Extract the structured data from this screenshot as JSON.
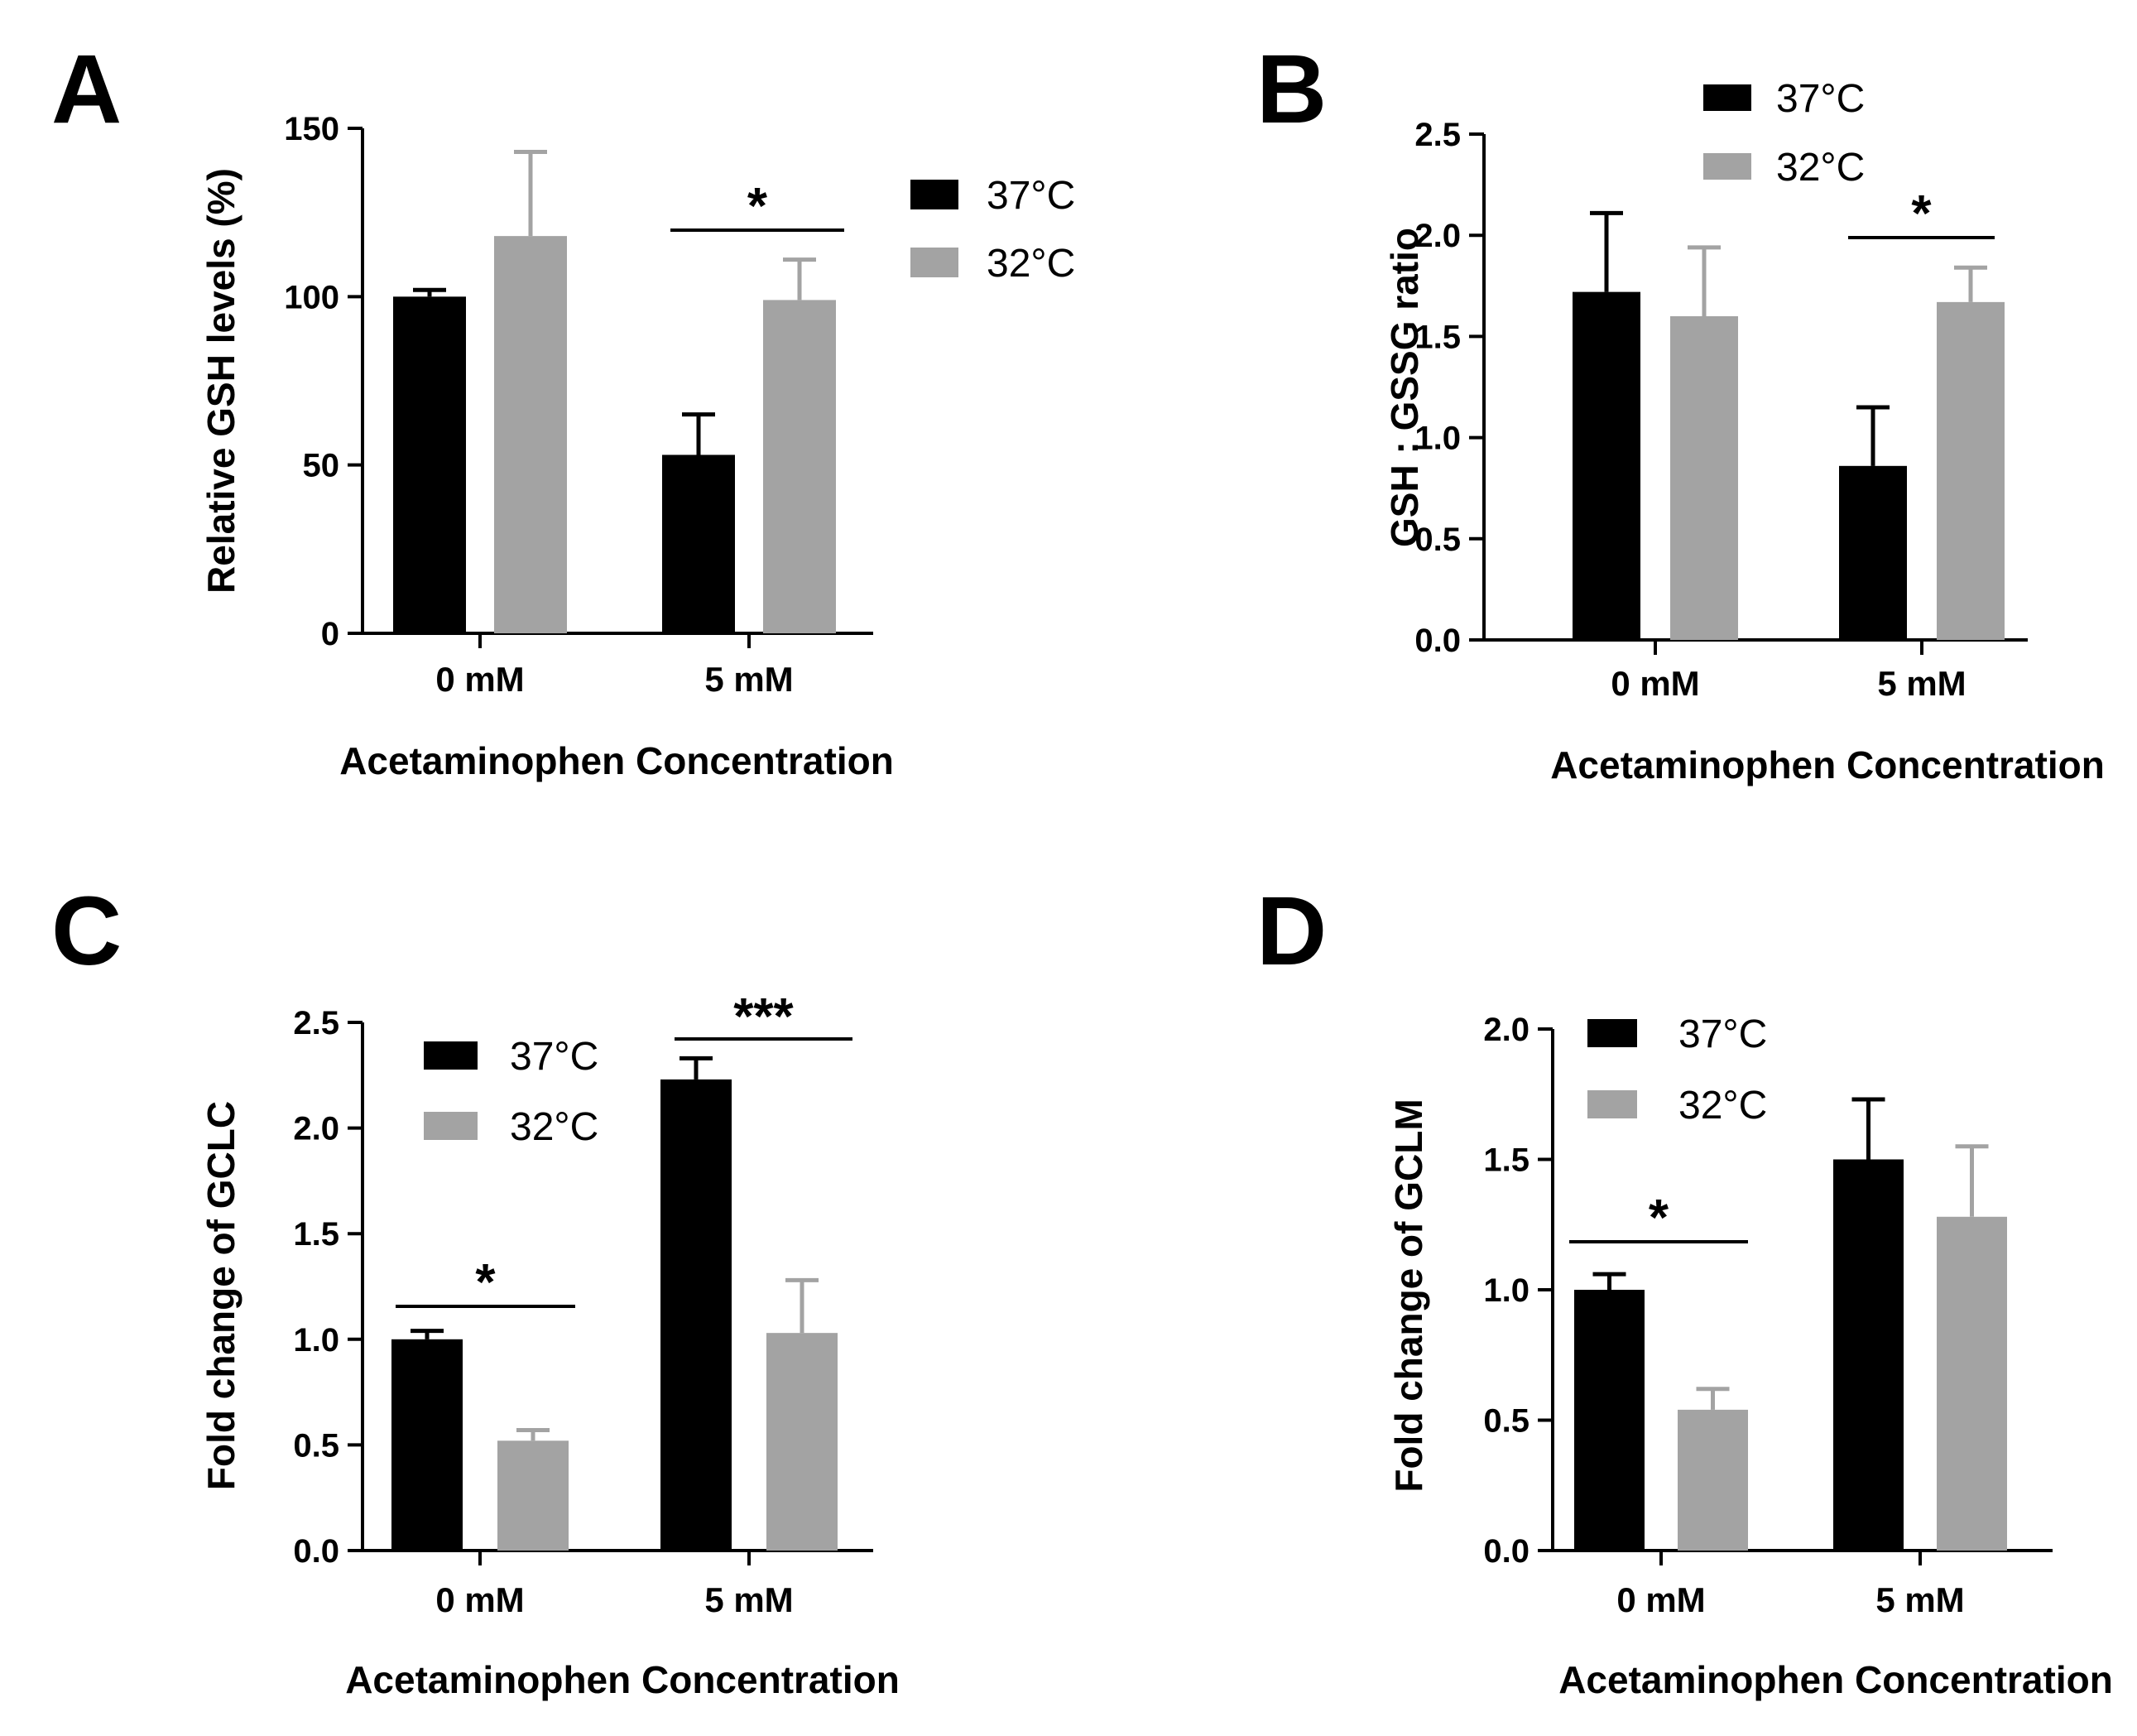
{
  "figure": {
    "panels": [
      "A",
      "B",
      "C",
      "D"
    ]
  },
  "colors": {
    "series_37": "#000000",
    "series_32": "#a3a3a3",
    "axis": "#000000"
  },
  "chart_data": [
    {
      "panel": "A",
      "type": "bar",
      "title": "",
      "xlabel": "Acetaminophen Concentration",
      "ylabel": "Relative GSH levels (%)",
      "categories": [
        "0 mM",
        "5 mM"
      ],
      "ylim": [
        0,
        150
      ],
      "yticks": [
        0,
        50,
        100,
        150
      ],
      "ytick_labels": [
        "0",
        "50",
        "100",
        "150"
      ],
      "legend": [
        "37°C",
        "32°C"
      ],
      "legend_position": "top-right",
      "series": [
        {
          "name": "37°C",
          "values": [
            100,
            53
          ],
          "errors": [
            2,
            12
          ]
        },
        {
          "name": "32°C",
          "values": [
            118,
            99
          ],
          "errors": [
            25,
            12
          ]
        }
      ],
      "significance": [
        {
          "category": "5 mM",
          "label": "*"
        }
      ]
    },
    {
      "panel": "B",
      "type": "bar",
      "title": "",
      "xlabel": "Acetaminophen Concentration",
      "ylabel": "GSH : GSSG ratio",
      "categories": [
        "0 mM",
        "5 mM"
      ],
      "ylim": [
        0,
        2.5
      ],
      "yticks": [
        0,
        0.5,
        1,
        1.5,
        2,
        2.5
      ],
      "ytick_labels": [
        "0.0",
        "0.5",
        "1.0",
        "1.5",
        "2.0",
        "2.5"
      ],
      "legend": [
        "37°C",
        "32°C"
      ],
      "legend_position": "top",
      "series": [
        {
          "name": "37°C",
          "values": [
            1.72,
            0.86
          ],
          "errors": [
            0.39,
            0.29
          ]
        },
        {
          "name": "32°C",
          "values": [
            1.6,
            1.67
          ],
          "errors": [
            0.34,
            0.17
          ]
        }
      ],
      "significance": [
        {
          "category": "5 mM",
          "label": "*"
        }
      ]
    },
    {
      "panel": "C",
      "type": "bar",
      "title": "",
      "xlabel": "Acetaminophen Concentration",
      "ylabel": "Fold change of GCLC",
      "categories": [
        "0 mM",
        "5 mM"
      ],
      "ylim": [
        0,
        2.5
      ],
      "yticks": [
        0,
        0.5,
        1,
        1.5,
        2,
        2.5
      ],
      "ytick_labels": [
        "0.0",
        "0.5",
        "1.0",
        "1.5",
        "2.0",
        "2.5"
      ],
      "legend": [
        "37°C",
        "32°C"
      ],
      "legend_position": "top-left",
      "series": [
        {
          "name": "37°C",
          "values": [
            1.0,
            2.23
          ],
          "errors": [
            0.04,
            0.1
          ]
        },
        {
          "name": "32°C",
          "values": [
            0.52,
            1.03
          ],
          "errors": [
            0.05,
            0.25
          ]
        }
      ],
      "significance": [
        {
          "category": "0 mM",
          "label": "*"
        },
        {
          "category": "5 mM",
          "label": "***"
        }
      ]
    },
    {
      "panel": "D",
      "type": "bar",
      "title": "",
      "xlabel": "Acetaminophen Concentration",
      "ylabel": "Fold change of GCLM",
      "categories": [
        "0 mM",
        "5 mM"
      ],
      "ylim": [
        0,
        2.0
      ],
      "yticks": [
        0,
        0.5,
        1,
        1.5,
        2
      ],
      "ytick_labels": [
        "0.0",
        "0.5",
        "1.0",
        "1.5",
        "2.0"
      ],
      "legend": [
        "37°C",
        "32°C"
      ],
      "legend_position": "top-left",
      "series": [
        {
          "name": "37°C",
          "values": [
            1.0,
            1.5
          ],
          "errors": [
            0.06,
            0.23
          ]
        },
        {
          "name": "32°C",
          "values": [
            0.54,
            1.28
          ],
          "errors": [
            0.08,
            0.27
          ]
        }
      ],
      "significance": [
        {
          "category": "0 mM",
          "label": "*"
        }
      ]
    }
  ]
}
